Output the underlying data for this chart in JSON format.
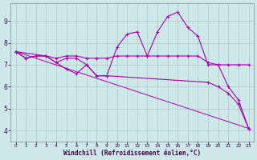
{
  "bg_color": "#cce8e8",
  "grid_color": "#aaccbb",
  "line_color": "#aa00aa",
  "xlabel": "Windchill (Refroidissement éolien,°C)",
  "xlim": [
    -0.5,
    23.5
  ],
  "ylim": [
    3.5,
    9.8
  ],
  "xticks": [
    0,
    1,
    2,
    3,
    4,
    5,
    6,
    7,
    8,
    9,
    10,
    11,
    12,
    13,
    14,
    15,
    16,
    17,
    18,
    19,
    20,
    21,
    22,
    23
  ],
  "yticks": [
    4,
    5,
    6,
    7,
    8,
    9
  ],
  "line1_x": [
    0,
    1,
    2,
    3,
    4,
    5,
    6,
    7,
    8,
    9,
    10,
    11,
    12,
    13,
    14,
    15,
    16,
    17,
    18,
    19,
    20,
    21,
    22,
    23
  ],
  "line1_y": [
    7.6,
    7.3,
    7.4,
    7.4,
    7.1,
    7.3,
    7.3,
    7.0,
    6.5,
    6.5,
    7.8,
    8.4,
    8.5,
    7.4,
    8.5,
    9.2,
    9.4,
    8.7,
    8.3,
    7.0,
    7.0,
    6.0,
    5.4,
    4.1
  ],
  "line2_x": [
    0,
    1,
    2,
    3,
    4,
    5,
    6,
    7,
    8,
    9,
    10,
    11,
    12,
    13,
    14,
    15,
    16,
    17,
    18,
    19,
    20,
    21,
    22,
    23
  ],
  "line2_y": [
    7.6,
    7.3,
    7.4,
    7.4,
    7.3,
    7.4,
    7.4,
    7.3,
    7.3,
    7.3,
    7.4,
    7.4,
    7.4,
    7.4,
    7.4,
    7.4,
    7.4,
    7.4,
    7.4,
    7.1,
    7.0,
    7.0,
    7.0,
    7.0
  ],
  "line3_x": [
    0,
    3,
    4,
    5,
    6,
    7,
    8,
    9,
    19,
    20,
    21,
    22,
    23
  ],
  "line3_y": [
    7.6,
    7.4,
    7.1,
    6.8,
    6.6,
    7.0,
    6.5,
    6.5,
    6.2,
    6.0,
    5.7,
    5.2,
    4.1
  ],
  "line4_x": [
    0,
    23
  ],
  "line4_y": [
    7.6,
    4.1
  ]
}
